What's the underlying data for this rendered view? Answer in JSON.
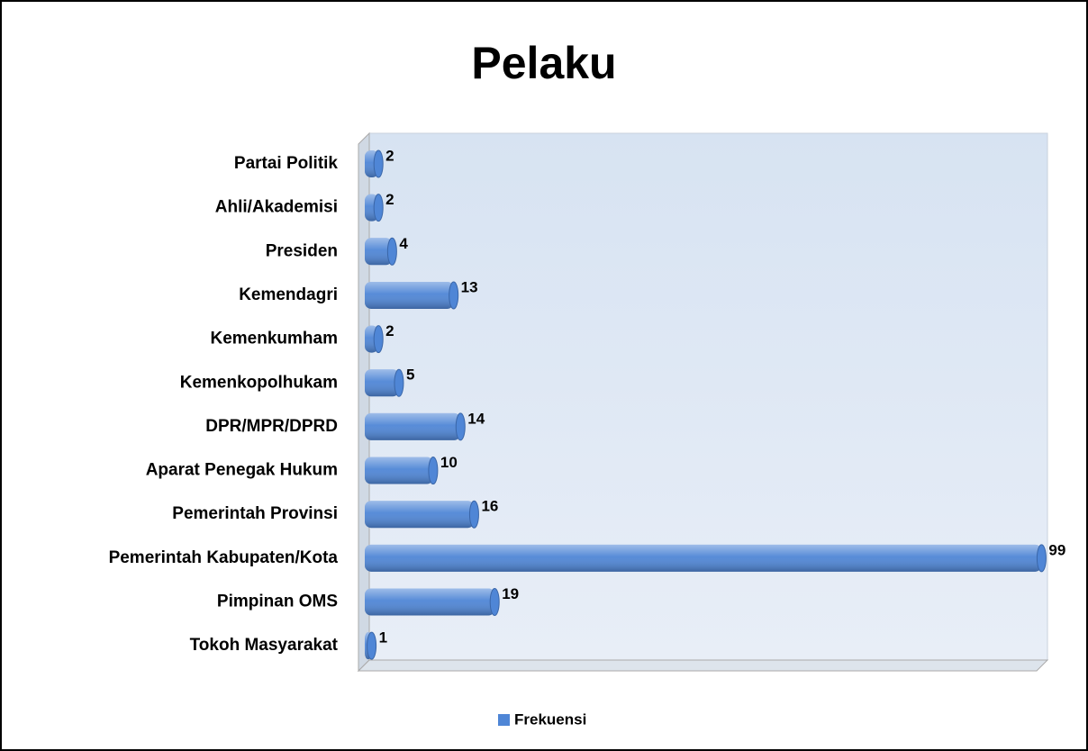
{
  "chart_data": {
    "type": "bar",
    "orientation": "horizontal",
    "title": "Pelaku",
    "categories": [
      "Partai Politik",
      "Ahli/Akademisi",
      "Presiden",
      "Kemendagri",
      "Kemenkumham",
      "Kemenkopolhukam",
      "DPR/MPR/DPRD",
      "Aparat Penegak Hukum",
      "Pemerintah Provinsi",
      "Pemerintah Kabupaten/Kota",
      "Pimpinan OMS",
      "Tokoh Masyarakat"
    ],
    "series": [
      {
        "name": "Frekuensi",
        "color": "#4f86d6",
        "values": [
          2,
          2,
          4,
          13,
          2,
          5,
          14,
          10,
          16,
          99,
          19,
          1
        ]
      }
    ],
    "xlim": [
      0,
      100
    ],
    "legend": "bottom"
  }
}
